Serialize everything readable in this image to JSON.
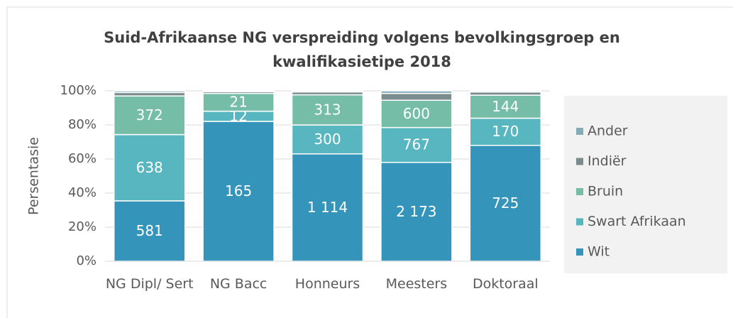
{
  "chart_data": {
    "type": "bar",
    "stacking": "percent",
    "title": "Suid-Afrikaanse NG verspreiding volgens bevolkingsgroep en kwalifikasietipe 2018",
    "ylabel": "Persentasie",
    "categories": [
      "NG Dipl/ Sert",
      "NG Bacc",
      "Honneurs",
      "Meesters",
      "Doktoraal"
    ],
    "series": [
      {
        "name": "Wit",
        "color": "#3494ba",
        "data_labels": true,
        "values": [
          581,
          165,
          1114,
          2173,
          725
        ],
        "value_labels": [
          "581",
          "165",
          "1 114",
          "2 173",
          "725"
        ]
      },
      {
        "name": "Swart Afrikaan",
        "color": "#58b6c0",
        "data_labels": true,
        "values": [
          638,
          12,
          300,
          767,
          170
        ]
      },
      {
        "name": "Bruin",
        "color": "#75bda7",
        "data_labels": true,
        "values": [
          372,
          21,
          313,
          600,
          144
        ]
      },
      {
        "name": "Indiër",
        "color": "#7a8c8e",
        "data_labels": false,
        "values": [
          33,
          2,
          30,
          150,
          20
        ]
      },
      {
        "name": "Ander",
        "color": "#84acb6",
        "data_labels": false,
        "values": [
          16,
          1,
          11,
          56,
          7
        ]
      }
    ],
    "ylim": [
      0,
      100
    ],
    "yticks": [
      {
        "value": 0,
        "label": "0%"
      },
      {
        "value": 20,
        "label": "20%"
      },
      {
        "value": 40,
        "label": "40%"
      },
      {
        "value": 60,
        "label": "60%"
      },
      {
        "value": 80,
        "label": "80%"
      },
      {
        "value": 100,
        "label": "100%"
      }
    ],
    "grid": true,
    "legend": "right"
  }
}
